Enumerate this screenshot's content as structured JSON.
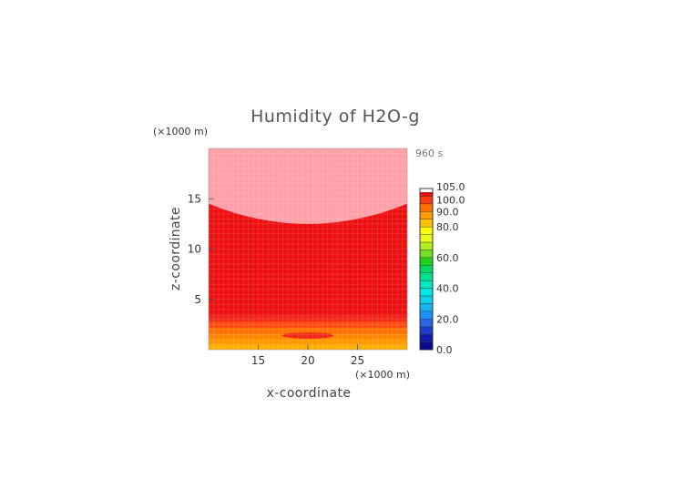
{
  "chart_data": {
    "type": "heatmap",
    "title": "Humidity of H2O-g",
    "xlabel": "x-coordinate",
    "ylabel": "z-coordinate",
    "x_unit": "(×1000 m)",
    "y_unit": "(×1000 m)",
    "time_label": "960 s",
    "xlim": [
      10,
      30
    ],
    "ylim": [
      0,
      20
    ],
    "x_ticks": [
      15,
      20,
      25
    ],
    "y_ticks": [
      5,
      10,
      15
    ],
    "colorbar": {
      "ticks": [
        "0.0",
        "20.0",
        "40.0",
        "60.0",
        "80.0",
        "90.0",
        "100.0",
        "105.0"
      ],
      "levels": [
        {
          "from": 0,
          "to": 5,
          "color": "#0a0a8c"
        },
        {
          "from": 5,
          "to": 10,
          "color": "#0f1aa8"
        },
        {
          "from": 10,
          "to": 15,
          "color": "#1a3cc8"
        },
        {
          "from": 15,
          "to": 20,
          "color": "#2a66e6"
        },
        {
          "from": 20,
          "to": 25,
          "color": "#1e90ff"
        },
        {
          "from": 25,
          "to": 30,
          "color": "#18b4f0"
        },
        {
          "from": 30,
          "to": 35,
          "color": "#10d0e8"
        },
        {
          "from": 35,
          "to": 40,
          "color": "#00e5e5"
        },
        {
          "from": 40,
          "to": 45,
          "color": "#00e8c0"
        },
        {
          "from": 45,
          "to": 50,
          "color": "#00e090"
        },
        {
          "from": 50,
          "to": 55,
          "color": "#00d860"
        },
        {
          "from": 55,
          "to": 60,
          "color": "#20d020"
        },
        {
          "from": 60,
          "to": 65,
          "color": "#70e020"
        },
        {
          "from": 65,
          "to": 70,
          "color": "#b0f020"
        },
        {
          "from": 70,
          "to": 75,
          "color": "#e8f820"
        },
        {
          "from": 75,
          "to": 80,
          "color": "#ffff00"
        },
        {
          "from": 80,
          "to": 85,
          "color": "#ffc000"
        },
        {
          "from": 85,
          "to": 90,
          "color": "#ff9a00"
        },
        {
          "from": 90,
          "to": 95,
          "color": "#ff7000"
        },
        {
          "from": 95,
          "to": 100,
          "color": "#ff3a10"
        },
        {
          "from": 100,
          "to": 102.5,
          "color": "#ee1010"
        },
        {
          "from": 102.5,
          "to": 105,
          "color": "#ffffff"
        }
      ]
    },
    "regions": [
      {
        "name": "upper-saturated",
        "value_range": [
          100,
          105
        ],
        "color": "#ffa0a8",
        "z_top": 20,
        "z_bottom_edge": 14.5,
        "z_bottom_center": 12.5
      },
      {
        "name": "main-body",
        "value_range": [
          95,
          100
        ],
        "color": "#ee1010"
      },
      {
        "name": "lower-band-1",
        "z_range": [
          2.8,
          3.4
        ],
        "color": "#f02818"
      },
      {
        "name": "lower-band-2",
        "z_range": [
          2.2,
          2.8
        ],
        "color": "#ff4a10"
      },
      {
        "name": "lower-band-3",
        "z_range": [
          1.6,
          2.2
        ],
        "color": "#ff7000"
      },
      {
        "name": "lower-band-4",
        "z_range": [
          1.0,
          1.6
        ],
        "color": "#ff8800"
      },
      {
        "name": "lower-band-5",
        "z_range": [
          0.5,
          1.0
        ],
        "color": "#ff9a00"
      },
      {
        "name": "lower-band-6",
        "z_range": [
          0,
          0.5
        ],
        "color": "#ffb000"
      },
      {
        "name": "center-blob",
        "x_center": 20,
        "z_center": 1.4,
        "x_half": 2.6,
        "z_half": 0.3,
        "color": "#f02818"
      }
    ]
  }
}
